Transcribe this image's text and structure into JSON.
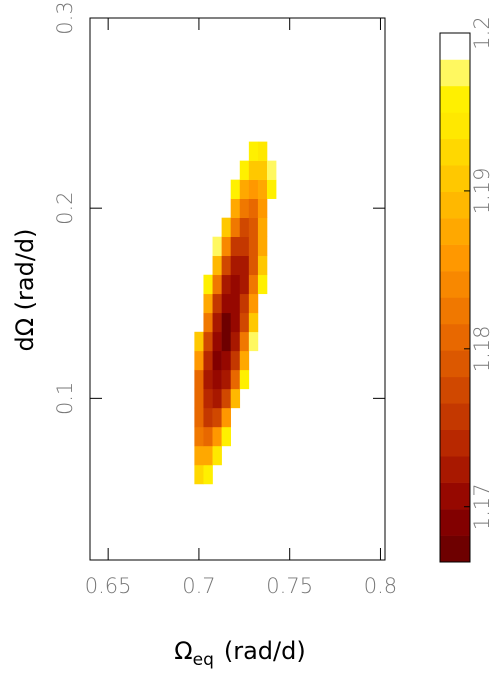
{
  "chart_data": {
    "type": "heatmap",
    "xlabel_symbol": "Ω",
    "xlabel_subscript": "eq",
    "xlabel_unit": "(rad/d)",
    "ylabel": "dΩ (rad/d)",
    "xlim": [
      0.64,
      0.8025
    ],
    "xticks": [
      0.65,
      0.7,
      0.75,
      0.8
    ],
    "ylim": [
      0.015,
      0.3
    ],
    "yticks": [
      0.1,
      0.2,
      0.3
    ],
    "x": [
      0.7,
      0.705,
      0.71,
      0.715,
      0.72,
      0.725,
      0.73,
      0.735,
      0.74,
      0.745
    ],
    "y": [
      0.06,
      0.07,
      0.08,
      0.09,
      0.1,
      0.11,
      0.12,
      0.13,
      0.14,
      0.15,
      0.16,
      0.17,
      0.18,
      0.19,
      0.2,
      0.21,
      0.22,
      0.23
    ],
    "z": [
      [
        1.193,
        1.196,
        null,
        null,
        null,
        null,
        null,
        null,
        null,
        null
      ],
      [
        1.187,
        1.188,
        1.194,
        null,
        null,
        null,
        null,
        null,
        null,
        null
      ],
      [
        1.183,
        1.181,
        1.185,
        1.195,
        null,
        null,
        null,
        null,
        null,
        null
      ],
      [
        1.18,
        1.176,
        1.178,
        1.185,
        null,
        null,
        null,
        null,
        null,
        null
      ],
      [
        1.18,
        1.174,
        1.173,
        1.178,
        1.189,
        null,
        null,
        null,
        null,
        null
      ],
      [
        1.181,
        1.173,
        1.17,
        1.173,
        1.181,
        1.196,
        null,
        null,
        null,
        null
      ],
      [
        1.185,
        1.174,
        1.169,
        1.17,
        1.176,
        1.188,
        null,
        null,
        null,
        null
      ],
      [
        1.19,
        1.177,
        1.17,
        1.168,
        1.172,
        1.182,
        1.197,
        null,
        null,
        null
      ],
      [
        null,
        1.182,
        1.172,
        1.168,
        1.17,
        1.177,
        1.19,
        null,
        null,
        null
      ],
      [
        null,
        1.188,
        1.176,
        1.17,
        1.17,
        1.175,
        1.185,
        null,
        null,
        null
      ],
      [
        null,
        1.196,
        1.182,
        1.173,
        1.17,
        1.173,
        1.182,
        1.196,
        null,
        null
      ],
      [
        null,
        null,
        1.189,
        1.178,
        1.173,
        1.173,
        1.179,
        1.191,
        null,
        null
      ],
      [
        null,
        null,
        1.197,
        1.184,
        1.176,
        1.175,
        1.179,
        1.188,
        null,
        null
      ],
      [
        null,
        null,
        null,
        1.191,
        1.182,
        1.178,
        1.179,
        1.187,
        null,
        null
      ],
      [
        null,
        null,
        null,
        null,
        1.188,
        1.182,
        1.181,
        1.186,
        null,
        null
      ],
      [
        null,
        null,
        null,
        null,
        1.196,
        1.188,
        1.185,
        1.188,
        1.196,
        null
      ],
      [
        null,
        null,
        null,
        null,
        null,
        1.195,
        1.19,
        1.19,
        1.197,
        null
      ],
      [
        null,
        null,
        null,
        null,
        null,
        null,
        1.196,
        1.194,
        null,
        null
      ]
    ],
    "colorbar_lim": [
      1.1665,
      1.2
    ],
    "colorbar_ticks": [
      1.17,
      1.18,
      1.19,
      1.2
    ],
    "colorscale": [
      "#6e0000",
      "#820000",
      "#960800",
      "#a81800",
      "#b82800",
      "#c43800",
      "#d04800",
      "#dc5800",
      "#e86800",
      "#f07800",
      "#f88800",
      "#ff9800",
      "#ffa800",
      "#ffb800",
      "#ffc800",
      "#ffd800",
      "#ffe800",
      "#fff000",
      "#fff860",
      "#ffffff"
    ]
  }
}
